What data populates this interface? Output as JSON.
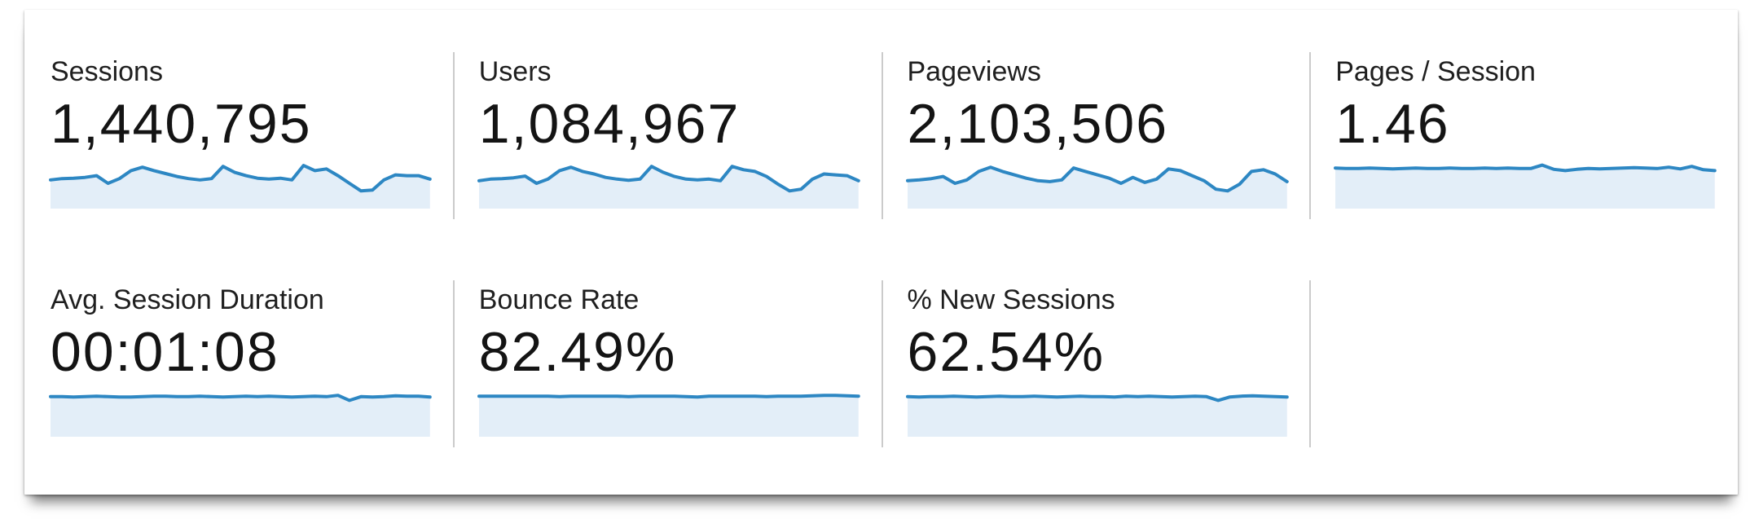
{
  "colors": {
    "spark_line": "#2d87c3",
    "spark_fill": "#e3eef8",
    "divider": "#cbcbcb",
    "label_text": "#1f1f1f",
    "value_text": "#141414",
    "panel_bg": "#ffffff"
  },
  "metrics": [
    {
      "id": "sessions",
      "label": "Sessions",
      "value": "1,440,795",
      "spark": [
        0.6,
        0.63,
        0.64,
        0.66,
        0.7,
        0.52,
        0.63,
        0.82,
        0.9,
        0.82,
        0.75,
        0.68,
        0.63,
        0.6,
        0.63,
        0.92,
        0.78,
        0.7,
        0.64,
        0.62,
        0.64,
        0.6,
        0.94,
        0.82,
        0.86,
        0.7,
        0.52,
        0.34,
        0.36,
        0.6,
        0.72,
        0.7,
        0.7,
        0.62
      ]
    },
    {
      "id": "users",
      "label": "Users",
      "value": "1,084,967",
      "spark": [
        0.58,
        0.62,
        0.63,
        0.65,
        0.69,
        0.52,
        0.62,
        0.82,
        0.9,
        0.8,
        0.74,
        0.66,
        0.62,
        0.59,
        0.62,
        0.92,
        0.78,
        0.68,
        0.62,
        0.6,
        0.62,
        0.58,
        0.92,
        0.84,
        0.8,
        0.68,
        0.5,
        0.34,
        0.38,
        0.62,
        0.74,
        0.72,
        0.7,
        0.58
      ]
    },
    {
      "id": "pageviews",
      "label": "Pageviews",
      "value": "2,103,506",
      "spark": [
        0.58,
        0.6,
        0.63,
        0.68,
        0.52,
        0.6,
        0.8,
        0.9,
        0.8,
        0.72,
        0.64,
        0.58,
        0.56,
        0.6,
        0.88,
        0.8,
        0.72,
        0.64,
        0.52,
        0.66,
        0.54,
        0.62,
        0.86,
        0.82,
        0.7,
        0.58,
        0.38,
        0.34,
        0.5,
        0.8,
        0.84,
        0.74,
        0.56
      ]
    },
    {
      "id": "pages-per-session",
      "label": "Pages / Session",
      "value": "1.46",
      "spark": [
        0.88,
        0.87,
        0.87,
        0.88,
        0.87,
        0.86,
        0.87,
        0.88,
        0.87,
        0.87,
        0.88,
        0.87,
        0.87,
        0.88,
        0.87,
        0.88,
        0.87,
        0.87,
        0.95,
        0.85,
        0.82,
        0.85,
        0.87,
        0.86,
        0.87,
        0.88,
        0.89,
        0.88,
        0.87,
        0.9,
        0.86,
        0.92,
        0.84,
        0.82
      ]
    },
    {
      "id": "avg-session-duration",
      "label": "Avg. Session Duration",
      "value": "00:01:08",
      "spark": [
        0.87,
        0.87,
        0.86,
        0.87,
        0.88,
        0.87,
        0.86,
        0.86,
        0.87,
        0.88,
        0.88,
        0.87,
        0.87,
        0.88,
        0.87,
        0.86,
        0.87,
        0.88,
        0.87,
        0.88,
        0.87,
        0.86,
        0.87,
        0.88,
        0.87,
        0.9,
        0.78,
        0.87,
        0.86,
        0.87,
        0.89,
        0.88,
        0.88,
        0.86
      ]
    },
    {
      "id": "bounce-rate",
      "label": "Bounce Rate",
      "value": "82.49%",
      "spark": [
        0.88,
        0.88,
        0.88,
        0.88,
        0.88,
        0.88,
        0.88,
        0.87,
        0.88,
        0.88,
        0.88,
        0.88,
        0.88,
        0.87,
        0.88,
        0.88,
        0.88,
        0.88,
        0.87,
        0.86,
        0.88,
        0.88,
        0.88,
        0.88,
        0.88,
        0.87,
        0.88,
        0.88,
        0.88,
        0.89,
        0.9,
        0.9,
        0.89,
        0.88
      ]
    },
    {
      "id": "percent-new-sessions",
      "label": "% New Sessions",
      "value": "62.54%",
      "spark": [
        0.87,
        0.86,
        0.87,
        0.87,
        0.88,
        0.87,
        0.86,
        0.87,
        0.88,
        0.87,
        0.87,
        0.88,
        0.87,
        0.86,
        0.87,
        0.88,
        0.87,
        0.87,
        0.86,
        0.88,
        0.87,
        0.88,
        0.87,
        0.86,
        0.87,
        0.88,
        0.87,
        0.78,
        0.86,
        0.88,
        0.89,
        0.88,
        0.87,
        0.86
      ]
    }
  ]
}
